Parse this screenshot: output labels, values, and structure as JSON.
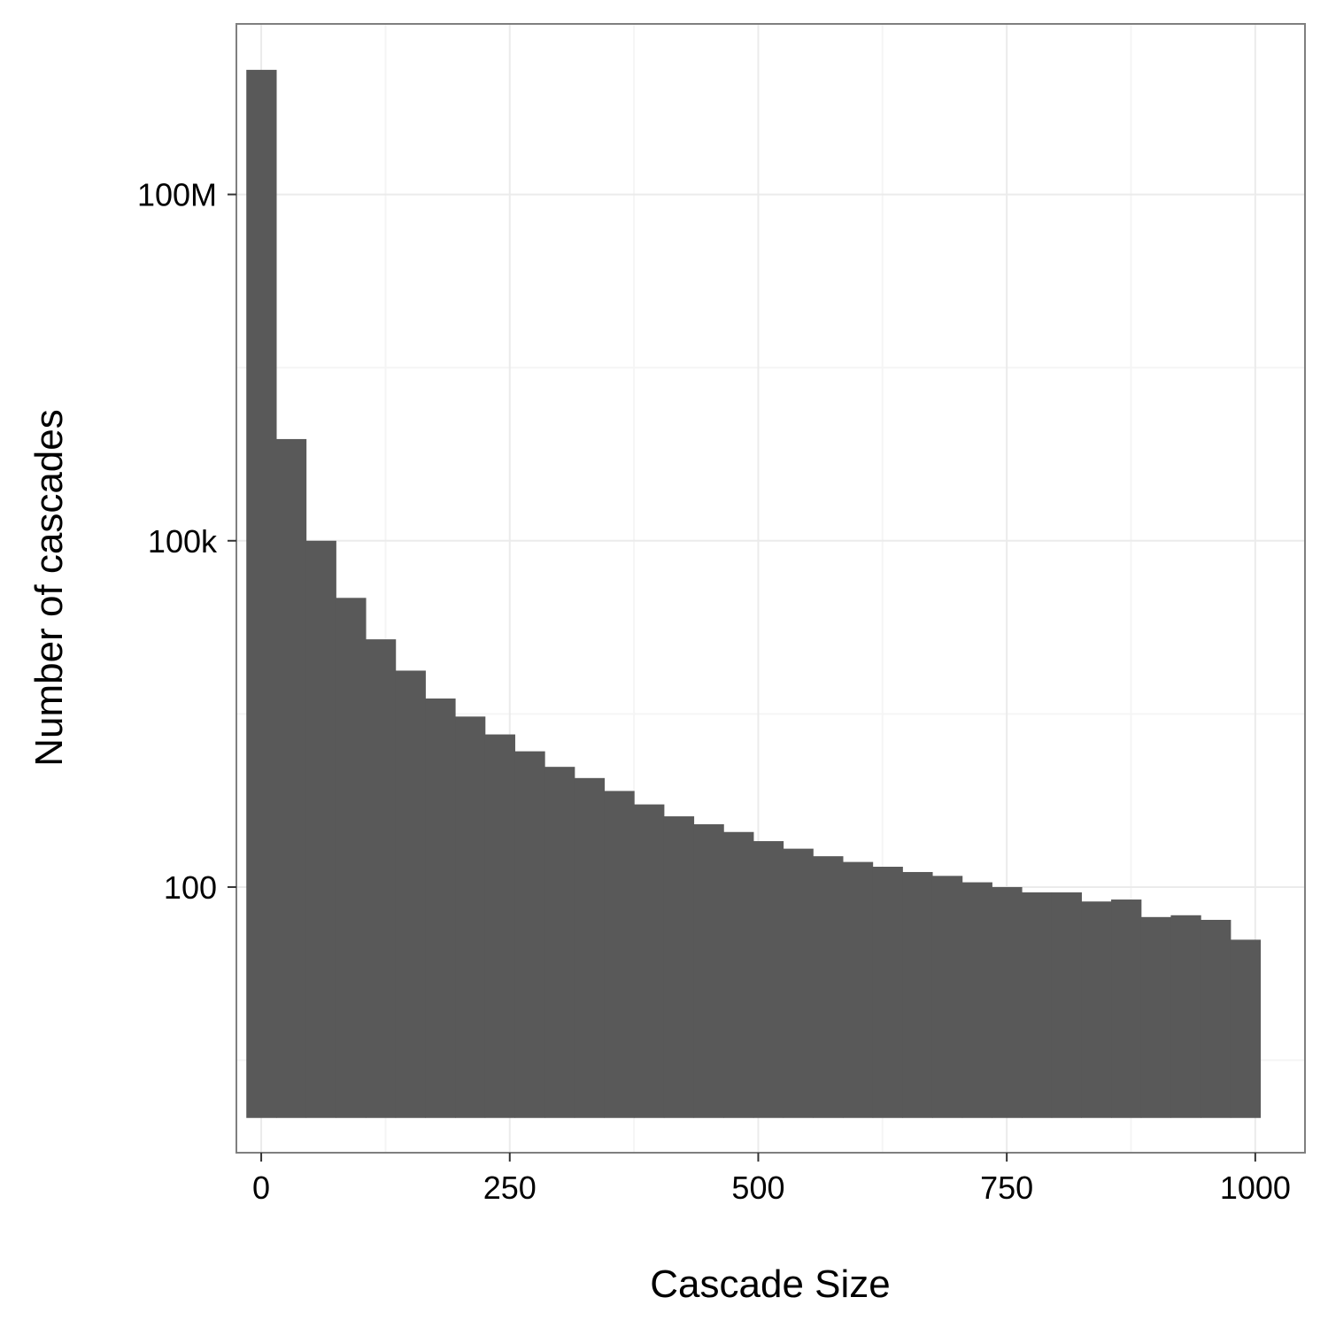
{
  "chart_data": {
    "type": "bar",
    "histogram": true,
    "title": "",
    "xlabel": "Cascade Size",
    "ylabel": "Number of cascades",
    "x_scale": "linear",
    "y_scale": "log10",
    "xlim": [
      -25,
      1050
    ],
    "ylim": [
      0.5,
      3000000000
    ],
    "bar_baseline": 1,
    "x_ticks": [
      0,
      250,
      500,
      750,
      1000
    ],
    "x_tick_labels": [
      "0",
      "250",
      "500",
      "750",
      "1000"
    ],
    "y_ticks": [
      100,
      100000,
      100000000
    ],
    "y_tick_labels": [
      "100",
      "100k",
      "100M"
    ],
    "grid": true,
    "legend": "none",
    "bin_width": 30,
    "bin_centers": [
      0,
      30,
      60,
      90,
      120,
      150,
      180,
      210,
      240,
      270,
      300,
      330,
      360,
      390,
      420,
      450,
      480,
      510,
      540,
      570,
      600,
      630,
      660,
      690,
      720,
      750,
      780,
      810,
      840,
      870,
      900,
      930,
      960,
      990
    ],
    "values": [
      1200000000,
      760000,
      100000,
      32000,
      14000,
      7500,
      4300,
      3000,
      2100,
      1500,
      1100,
      880,
      680,
      520,
      410,
      350,
      300,
      250,
      215,
      185,
      165,
      150,
      135,
      125,
      110,
      100,
      90,
      90,
      75,
      78,
      55,
      57,
      52,
      35
    ],
    "colors": {
      "bar": "#595959",
      "panel_border": "#7f7f7f",
      "grid_major": "#ebebeb",
      "grid_minor": "#f5f5f5",
      "text": "#000000"
    }
  }
}
